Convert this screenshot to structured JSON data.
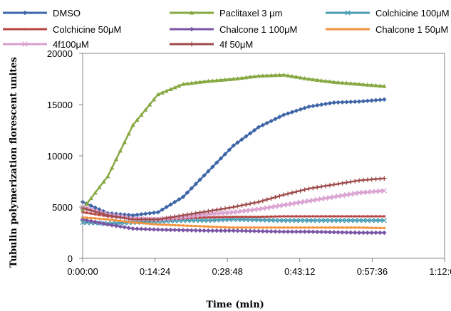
{
  "chart_data": {
    "type": "line",
    "title": "",
    "xlabel": "Time (min)",
    "ylabel": "Tubulin polymerization florescent unites",
    "x_unit": "seconds",
    "xlim": [
      0,
      4320
    ],
    "ylim": [
      0,
      20000
    ],
    "x_ticks": [
      {
        "value": 0,
        "label": "0:00:00"
      },
      {
        "value": 864,
        "label": "0:14:24"
      },
      {
        "value": 1728,
        "label": "0:28:48"
      },
      {
        "value": 2592,
        "label": "0:43:12"
      },
      {
        "value": 3456,
        "label": "0:57:36"
      },
      {
        "value": 4320,
        "label": "1:12:00"
      }
    ],
    "y_ticks": [
      {
        "value": 0,
        "label": "0"
      },
      {
        "value": 5000,
        "label": "5000"
      },
      {
        "value": 10000,
        "label": "10000"
      },
      {
        "value": 15000,
        "label": "15000"
      },
      {
        "value": 20000,
        "label": "20000"
      }
    ],
    "grid": false,
    "legend_position": "top",
    "x": [
      0,
      300,
      600,
      900,
      1200,
      1500,
      1800,
      2100,
      2400,
      2700,
      3000,
      3300,
      3600
    ],
    "series": [
      {
        "name": "DMSO",
        "color": "#3e65a7",
        "marker": "diamond",
        "values": [
          5500,
          4400,
          4200,
          4500,
          6000,
          8500,
          11000,
          12800,
          14000,
          14800,
          15200,
          15300,
          15500
        ]
      },
      {
        "name": "Paclitaxel 3 μm",
        "color": "#86a841",
        "marker": "triangle",
        "values": [
          4800,
          8000,
          13000,
          16000,
          17000,
          17300,
          17500,
          17800,
          17900,
          17500,
          17200,
          17000,
          16800
        ]
      },
      {
        "name": "Colchicine 100μM",
        "color": "#4a9db3",
        "marker": "x",
        "values": [
          3500,
          3400,
          3500,
          3600,
          3700,
          3700,
          3800,
          3750,
          3700,
          3700,
          3700,
          3700,
          3700
        ]
      },
      {
        "name": "Colchicine 50μM",
        "color": "#b9443f",
        "marker": "line",
        "values": [
          4500,
          4100,
          3900,
          3800,
          3900,
          4000,
          4050,
          4050,
          4100,
          4100,
          4100,
          4100,
          4100
        ]
      },
      {
        "name": "Chalcone 1 100μM",
        "color": "#7a55a6",
        "marker": "diamond",
        "values": [
          3800,
          3300,
          2900,
          2800,
          2750,
          2700,
          2700,
          2650,
          2600,
          2600,
          2550,
          2500,
          2500
        ]
      },
      {
        "name": "Chalcone 1 50μM",
        "color": "#f3923d",
        "marker": "line",
        "values": [
          4000,
          3800,
          3500,
          3300,
          3200,
          3100,
          3000,
          3000,
          3000,
          3000,
          3000,
          3000,
          2950
        ]
      },
      {
        "name": "4f100μM",
        "color": "#d9a0cf",
        "marker": "x",
        "values": [
          5000,
          4300,
          3900,
          3800,
          4000,
          4300,
          4500,
          4800,
          5200,
          5600,
          6000,
          6400,
          6600
        ]
      },
      {
        "name": "4f 50μM",
        "color": "#9e4a4a",
        "marker": "plus",
        "values": [
          4900,
          4200,
          3800,
          3800,
          4200,
          4600,
          5000,
          5500,
          6200,
          6800,
          7200,
          7600,
          7800
        ]
      }
    ]
  }
}
